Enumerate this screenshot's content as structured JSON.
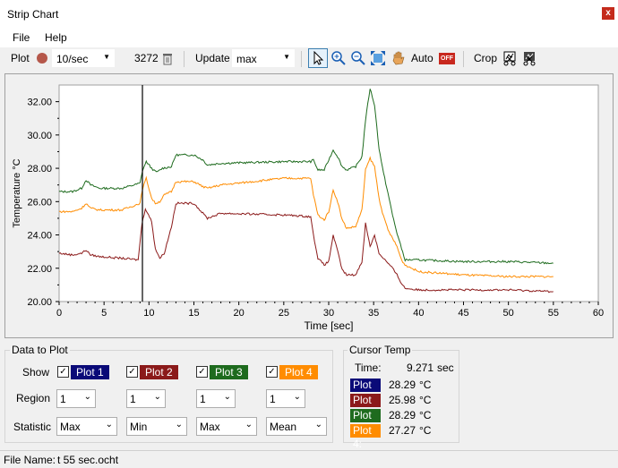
{
  "window": {
    "title": "Strip Chart",
    "close_glyph": "x"
  },
  "menu": {
    "items": [
      "File",
      "Help"
    ]
  },
  "toolbar": {
    "plot_label": "Plot",
    "rate_value": "10/sec",
    "count": "3272",
    "update_label": "Update",
    "update_value": "max",
    "auto_label": "Auto",
    "auto_state": "OFF",
    "crop_label": "Crop",
    "icons": [
      "record-icon",
      "trash-icon",
      "pointer-icon",
      "zoom-in-icon",
      "zoom-out-icon",
      "zoom-fit-icon",
      "pan-hand-icon",
      "crop-icon",
      "crop-undo-icon"
    ]
  },
  "chart_data": {
    "type": "line",
    "xlabel": "Time [sec]",
    "ylabel": "Temperature °C",
    "xlim": [
      0,
      60
    ],
    "ylim": [
      20,
      33
    ],
    "xticks": [
      "0",
      "5",
      "10",
      "15",
      "20",
      "25",
      "30",
      "35",
      "40",
      "45",
      "50",
      "55",
      "60"
    ],
    "yticks": [
      "20.00",
      "22.00",
      "24.00",
      "26.00",
      "28.00",
      "30.00",
      "32.00"
    ],
    "cursor_x": 9.271,
    "grid": false,
    "series": [
      {
        "color": "#1e6b1e",
        "x": [
          0,
          1.5,
          2.5,
          3,
          3.5,
          4.5,
          7,
          9,
          9.3,
          9.7,
          10.3,
          10.7,
          11,
          11.5,
          12.5,
          13,
          15,
          16,
          16.5,
          18,
          25,
          28,
          28.3,
          28.8,
          29.5,
          30,
          30.5,
          31,
          31.5,
          32,
          33,
          33.7,
          34.1,
          34.6,
          35.1,
          35.6,
          36.1,
          36.6,
          37.1,
          37.6,
          38.1,
          38.5,
          40,
          45,
          50,
          55
        ],
        "y": [
          26.6,
          26.6,
          26.8,
          27.3,
          27.0,
          26.8,
          26.8,
          27.1,
          27.9,
          28.4,
          28.0,
          27.8,
          27.8,
          28.0,
          28.1,
          28.8,
          28.8,
          28.5,
          28.2,
          28.3,
          28.4,
          28.4,
          28.5,
          27.9,
          27.9,
          28.5,
          29.1,
          28.7,
          28.1,
          27.9,
          28.1,
          28.7,
          30.9,
          32.8,
          31.8,
          29.2,
          27.7,
          26.5,
          25.2,
          24.1,
          23.2,
          22.5,
          22.5,
          22.4,
          22.4,
          22.3
        ]
      },
      {
        "color": "#ff8c00",
        "x": [
          0,
          1.5,
          2.5,
          3,
          3.5,
          4.5,
          7,
          9,
          9.3,
          9.7,
          10.3,
          10.7,
          11.2,
          11.7,
          12.5,
          13,
          15,
          16,
          16.5,
          18,
          25,
          28,
          28.3,
          28.8,
          29.5,
          30,
          30.5,
          31,
          31.5,
          32,
          33,
          33.7,
          34.1,
          34.6,
          35.1,
          35.6,
          36.1,
          36.6,
          37.1,
          37.6,
          38.1,
          38.5,
          40,
          45,
          50,
          55
        ],
        "y": [
          25.4,
          25.4,
          25.6,
          25.9,
          25.6,
          25.5,
          25.5,
          25.9,
          26.8,
          27.4,
          26.2,
          25.9,
          26.0,
          26.4,
          26.6,
          27.2,
          27.2,
          26.9,
          26.8,
          27.0,
          27.4,
          27.4,
          26.4,
          25.2,
          24.9,
          25.4,
          26.7,
          26.0,
          24.9,
          24.4,
          24.5,
          25.5,
          27.9,
          28.6,
          28.1,
          26.2,
          25.1,
          24.3,
          23.8,
          23.3,
          22.5,
          22.2,
          21.8,
          21.6,
          21.5,
          21.5
        ]
      },
      {
        "color": "#8b1a1a",
        "x": [
          0,
          1.5,
          2.5,
          3,
          3.5,
          4.5,
          7,
          8.8,
          9.2,
          9.6,
          10.3,
          10.7,
          11.2,
          11.7,
          12.5,
          13,
          15,
          16,
          16.5,
          18,
          25,
          28,
          28.3,
          28.8,
          29.5,
          30,
          30.5,
          31,
          31.5,
          32,
          33,
          33.7,
          34.1,
          34.6,
          35.1,
          35.6,
          36.1,
          36.6,
          37.1,
          37.6,
          38.1,
          38.5,
          40,
          45,
          50,
          55
        ],
        "y": [
          22.9,
          22.8,
          22.9,
          23.1,
          22.8,
          22.7,
          22.6,
          22.5,
          24.6,
          25.6,
          24.8,
          23.2,
          22.6,
          22.9,
          24.5,
          25.9,
          25.9,
          25.3,
          25.0,
          25.3,
          25.2,
          25.1,
          24.0,
          22.6,
          22.2,
          22.4,
          24.0,
          23.0,
          21.9,
          21.6,
          21.6,
          22.4,
          24.7,
          23.3,
          24.0,
          22.9,
          22.6,
          22.3,
          22.0,
          21.6,
          21.1,
          20.8,
          20.7,
          20.7,
          20.7,
          20.6
        ]
      }
    ]
  },
  "data_to_plot": {
    "title": "Data to Plot",
    "show_label": "Show",
    "region_label": "Region",
    "statistic_label": "Statistic",
    "plots": [
      {
        "label": "Plot 1",
        "color": "#0a0a78",
        "region": "1",
        "statistic": "Max"
      },
      {
        "label": "Plot 2",
        "color": "#8b1a1a",
        "region": "1",
        "statistic": "Min"
      },
      {
        "label": "Plot 3",
        "color": "#1e6b1e",
        "region": "1",
        "statistic": "Max"
      },
      {
        "label": "Plot 4",
        "color": "#ff8c00",
        "region": "1",
        "statistic": "Mean"
      }
    ]
  },
  "cursor_temp": {
    "title": "Cursor Temp",
    "time_label": "Time:",
    "time_value": "9.271",
    "time_unit": "sec",
    "unit": "°C",
    "rows": [
      {
        "label": "Plot 1:",
        "color": "#0a0a78",
        "value": "28.29"
      },
      {
        "label": "Plot 2:",
        "color": "#8b1a1a",
        "value": "25.98"
      },
      {
        "label": "Plot 3:",
        "color": "#1e6b1e",
        "value": "28.29"
      },
      {
        "label": "Plot 4:",
        "color": "#ff8c00",
        "value": "27.27"
      }
    ]
  },
  "status": {
    "file_label": "File Name:",
    "file_name": "t 55 sec.ocht"
  }
}
